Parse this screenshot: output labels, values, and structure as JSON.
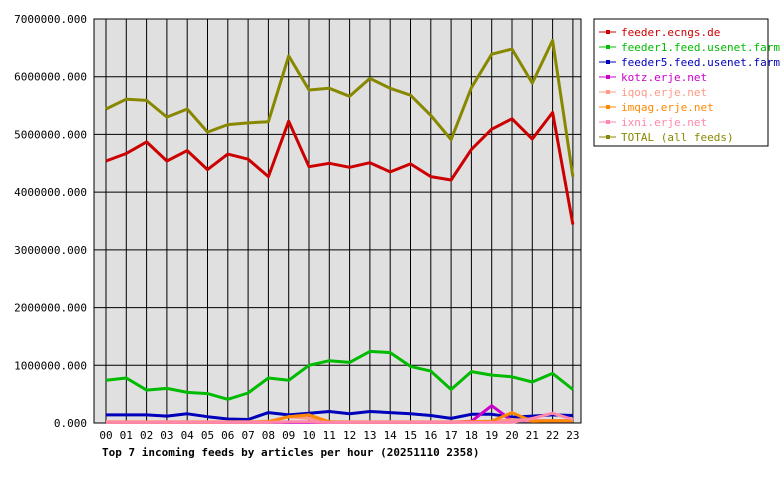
{
  "chart_data": {
    "type": "line",
    "title": "Top 7 incoming feeds by articles per hour (20251110 2358)",
    "categories": [
      "00",
      "01",
      "02",
      "03",
      "04",
      "05",
      "06",
      "07",
      "08",
      "09",
      "10",
      "11",
      "12",
      "13",
      "14",
      "15",
      "16",
      "17",
      "18",
      "19",
      "20",
      "21",
      "22",
      "23"
    ],
    "ylim": [
      0,
      7000000
    ],
    "yticks": [
      "0.000",
      "1000000.000",
      "2000000.000",
      "3000000.000",
      "4000000.000",
      "5000000.000",
      "6000000.000",
      "7000000.000"
    ],
    "grid": true,
    "legend_position": "top-right",
    "series": [
      {
        "name": "feeder.ecngs.de",
        "color": "#cc0000",
        "values": [
          4540000,
          4670000,
          4870000,
          4540000,
          4720000,
          4390000,
          4660000,
          4570000,
          4270000,
          5230000,
          4440000,
          4500000,
          4430000,
          4510000,
          4350000,
          4490000,
          4270000,
          4210000,
          4740000,
          5090000,
          5270000,
          4920000,
          5380000,
          3440000
        ]
      },
      {
        "name": "feeder1.feed.usenet.farm",
        "color": "#00bb00",
        "values": [
          740000,
          780000,
          570000,
          600000,
          530000,
          510000,
          410000,
          520000,
          780000,
          740000,
          1000000,
          1080000,
          1050000,
          1240000,
          1220000,
          980000,
          900000,
          580000,
          890000,
          830000,
          800000,
          710000,
          860000,
          580000
        ]
      },
      {
        "name": "feeder5.feed.usenet.farm",
        "color": "#0000bb",
        "values": [
          140000,
          140000,
          140000,
          120000,
          160000,
          110000,
          70000,
          60000,
          180000,
          140000,
          170000,
          200000,
          160000,
          200000,
          180000,
          160000,
          130000,
          80000,
          150000,
          150000,
          100000,
          120000,
          140000,
          130000
        ]
      },
      {
        "name": "kotz.erje.net",
        "color": "#cc00cc",
        "values": [
          10000,
          10000,
          10000,
          10000,
          10000,
          10000,
          10000,
          10000,
          10000,
          10000,
          10000,
          10000,
          10000,
          10000,
          10000,
          10000,
          10000,
          10000,
          30000,
          300000,
          40000,
          40000,
          40000,
          40000
        ]
      },
      {
        "name": "iqoq.erje.net",
        "color": "#ff9988",
        "values": [
          20000,
          20000,
          20000,
          20000,
          20000,
          20000,
          20000,
          20000,
          30000,
          110000,
          80000,
          20000,
          20000,
          20000,
          20000,
          20000,
          20000,
          20000,
          20000,
          20000,
          60000,
          40000,
          40000,
          40000
        ]
      },
      {
        "name": "imqag.erje.net",
        "color": "#ff8800",
        "values": [
          10000,
          10000,
          10000,
          10000,
          10000,
          10000,
          10000,
          10000,
          20000,
          110000,
          140000,
          20000,
          10000,
          10000,
          10000,
          10000,
          10000,
          10000,
          20000,
          30000,
          180000,
          30000,
          40000,
          40000
        ]
      },
      {
        "name": "ixni.erje.net",
        "color": "#ff88aa",
        "values": [
          10000,
          10000,
          10000,
          10000,
          10000,
          10000,
          10000,
          10000,
          10000,
          20000,
          20000,
          10000,
          10000,
          10000,
          10000,
          10000,
          10000,
          10000,
          10000,
          10000,
          10000,
          80000,
          170000,
          60000
        ]
      },
      {
        "name": "TOTAL (all feeds)",
        "color": "#888800",
        "values": [
          5440000,
          5610000,
          5590000,
          5300000,
          5440000,
          5040000,
          5170000,
          5200000,
          5220000,
          6360000,
          5770000,
          5800000,
          5660000,
          5970000,
          5800000,
          5680000,
          5330000,
          4910000,
          5810000,
          6390000,
          6480000,
          5890000,
          6630000,
          4270000
        ]
      }
    ]
  }
}
